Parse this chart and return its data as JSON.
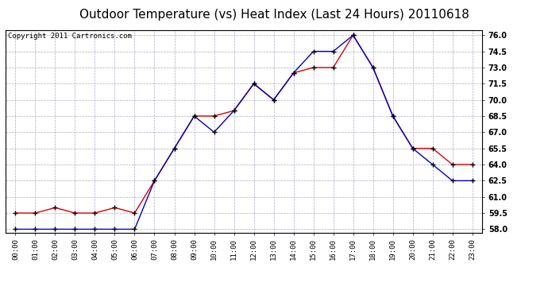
{
  "title": "Outdoor Temperature (vs) Heat Index (Last 24 Hours) 20110618",
  "copyright": "Copyright 2011 Cartronics.com",
  "x_labels": [
    "00:00",
    "01:00",
    "02:00",
    "03:00",
    "04:00",
    "05:00",
    "06:00",
    "07:00",
    "08:00",
    "09:00",
    "10:00",
    "11:00",
    "12:00",
    "13:00",
    "14:00",
    "15:00",
    "16:00",
    "17:00",
    "18:00",
    "19:00",
    "20:00",
    "21:00",
    "22:00",
    "23:00"
  ],
  "red_data": [
    59.5,
    59.5,
    60.0,
    59.5,
    59.5,
    60.0,
    59.5,
    62.5,
    65.5,
    68.5,
    68.5,
    69.0,
    71.5,
    70.0,
    72.5,
    73.0,
    73.0,
    76.0,
    73.0,
    68.5,
    65.5,
    65.5,
    64.0,
    64.0
  ],
  "blue_data": [
    58.0,
    58.0,
    58.0,
    58.0,
    58.0,
    58.0,
    58.0,
    62.5,
    65.5,
    68.5,
    67.0,
    69.0,
    71.5,
    70.0,
    72.5,
    74.5,
    74.5,
    76.0,
    73.0,
    68.5,
    65.5,
    64.0,
    62.5,
    62.5
  ],
  "red_color": "#dd0000",
  "blue_color": "#0000cc",
  "marker_color": "#000000",
  "bg_color": "#ffffff",
  "plot_bg_color": "#ffffff",
  "grid_color": "#aaaacc",
  "ylim_min": 58.0,
  "ylim_max": 76.0,
  "ytick_step": 1.5,
  "title_fontsize": 11,
  "copyright_fontsize": 6.5
}
